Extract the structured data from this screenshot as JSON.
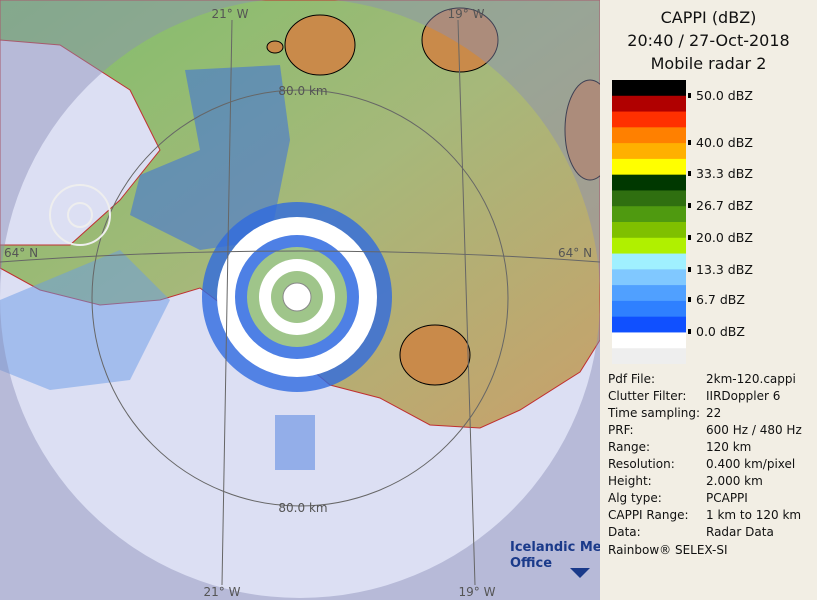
{
  "map": {
    "grid_labels": [
      "21° W",
      "19° W",
      "64° N",
      "64° N",
      "21° W",
      "19° W"
    ],
    "range_labels": [
      "80.0 km",
      "80.0 km"
    ],
    "logo": [
      "Icelandic Met",
      "Office"
    ]
  },
  "panel": {
    "title": [
      "CAPPI (dBZ)",
      "20:40 / 27-Oct-2018",
      "Mobile radar 2"
    ],
    "scale": [
      "50.0 dBZ",
      "40.0 dBZ",
      "33.3 dBZ",
      "26.7 dBZ",
      "20.0 dBZ",
      "13.3 dBZ",
      "6.7 dBZ",
      "0.0 dBZ"
    ],
    "info": [
      [
        "Pdf File:",
        "2km-120.cappi"
      ],
      [
        "Clutter Filter:",
        "IIRDoppler 6"
      ],
      [
        "Time sampling:",
        "22"
      ],
      [
        "PRF:",
        "600 Hz / 480 Hz"
      ],
      [
        "Range:",
        "120 km"
      ],
      [
        "Resolution:",
        "0.400 km/pixel"
      ],
      [
        "Height:",
        "2.000 km"
      ],
      [
        "Alg type:",
        "PCAPPI"
      ],
      [
        "CAPPI Range:",
        "1 km to 120 km"
      ],
      [
        "Data:",
        "Radar Data"
      ]
    ],
    "footer": "Rainbow® SELEX-SI"
  }
}
